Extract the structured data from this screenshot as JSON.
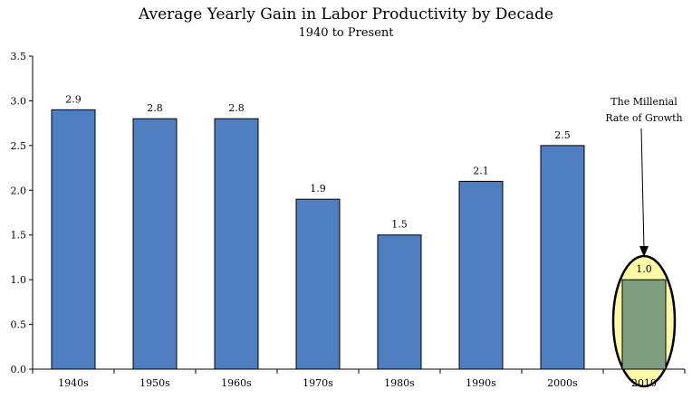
{
  "chart_data": {
    "type": "bar",
    "title": "Average Yearly Gain in Labor Productivity by Decade",
    "subtitle": "1940 to Present",
    "xlabel": "",
    "ylabel": "",
    "ylim": [
      0,
      3.5
    ],
    "yticks": [
      "0.0",
      "0.5",
      "1.0",
      "1.5",
      "2.0",
      "2.5",
      "3.0",
      "3.5"
    ],
    "categories": [
      "1940s",
      "1950s",
      "1960s",
      "1970s",
      "1980s",
      "1990s",
      "2000s",
      "2010"
    ],
    "values": [
      2.9,
      2.8,
      2.8,
      1.9,
      1.5,
      2.1,
      2.5,
      1.0
    ],
    "value_labels": [
      "2.9",
      "2.8",
      "2.8",
      "1.9",
      "1.5",
      "2.1",
      "2.5",
      "1.0"
    ],
    "grid": false,
    "bar_color": "#4f7fc0",
    "highlight_color": "#7f9e80",
    "highlight_index": 7,
    "highlight_ellipse_color": "#fffaa8",
    "annotation": {
      "line1": "The Millenial",
      "line2": "Rate of Growth",
      "target_category": "2010"
    }
  }
}
